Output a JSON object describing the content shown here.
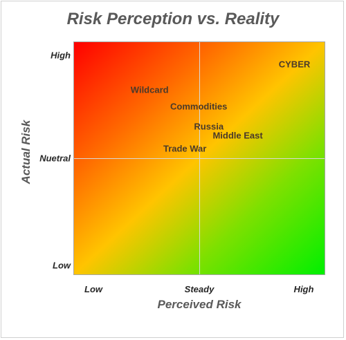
{
  "chart_data": {
    "type": "scatter",
    "title": "Risk Perception vs. Reality",
    "xlabel": "Perceived Risk",
    "ylabel": "Actual Risk",
    "xlim": [
      0,
      2
    ],
    "ylim": [
      0,
      2
    ],
    "x_ticks": [
      {
        "label": "Low",
        "value": 0
      },
      {
        "label": "Steady",
        "value": 1
      },
      {
        "label": "High",
        "value": 2
      }
    ],
    "y_ticks": [
      {
        "label": "High",
        "value": 2
      },
      {
        "label": "Nuetral",
        "value": 1
      },
      {
        "label": "Low",
        "value": 0
      }
    ],
    "points": [
      {
        "label": "CYBER",
        "x": 1.75,
        "y": 1.81
      },
      {
        "label": "Wildcard",
        "x": 0.6,
        "y": 1.59
      },
      {
        "label": "Commodities",
        "x": 0.99,
        "y": 1.45
      },
      {
        "label": "Russia",
        "x": 1.07,
        "y": 1.28
      },
      {
        "label": "Middle East",
        "x": 1.3,
        "y": 1.2
      },
      {
        "label": "Trade War",
        "x": 0.88,
        "y": 1.09
      }
    ],
    "grid": true,
    "background": "gradient red (top-left) to green (bottom-right)",
    "colors": {
      "high_risk": "#ff0000",
      "mid": "#ffc400",
      "low_risk": "#00f000"
    }
  }
}
